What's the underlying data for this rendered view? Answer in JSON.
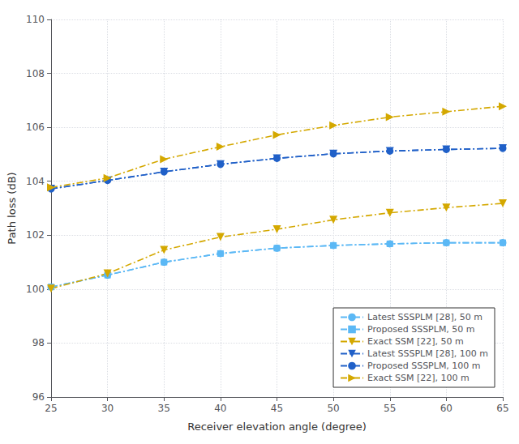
{
  "chart_data": {
    "type": "line",
    "xlabel": "Receiver elevation angle (degree)",
    "ylabel": "Path loss (dB)",
    "x": [
      25,
      30,
      35,
      40,
      45,
      50,
      55,
      60,
      65
    ],
    "series": [
      {
        "name": "Latest SSSPLM [28], 50 m",
        "color": "#5bb8f5",
        "marker": "circle",
        "line_style": "dashdot",
        "values": [
          100.08,
          100.52,
          101.0,
          101.32,
          101.52,
          101.62,
          101.68,
          101.72,
          101.72
        ]
      },
      {
        "name": "Proposed SSSPLM, 50 m",
        "color": "#5bb8f5",
        "marker": "square",
        "line_style": "dashdot",
        "values": [
          100.08,
          100.52,
          101.0,
          101.32,
          101.52,
          101.62,
          101.68,
          101.72,
          101.72
        ]
      },
      {
        "name": "Exact SSM [22], 50 m",
        "color": "#d4a800",
        "marker": "triangle_down",
        "line_style": "dashdot",
        "values": [
          100.02,
          100.58,
          101.45,
          101.93,
          102.22,
          102.57,
          102.83,
          103.02,
          103.18
        ]
      },
      {
        "name": "Latest SSSPLM [28], 100 m",
        "color": "#2060c8",
        "marker": "triangle_down",
        "line_style": "dashdot",
        "values": [
          103.72,
          104.03,
          104.35,
          104.63,
          104.85,
          105.02,
          105.12,
          105.18,
          105.22
        ]
      },
      {
        "name": "Proposed SSSPLM, 100 m",
        "color": "#2060c8",
        "marker": "circle",
        "line_style": "dashdot",
        "values": [
          103.72,
          104.03,
          104.35,
          104.63,
          104.85,
          105.02,
          105.12,
          105.18,
          105.22
        ]
      },
      {
        "name": "Exact SSM [22], 100 m",
        "color": "#d4a800",
        "marker": "triangle_right",
        "line_style": "dashdot",
        "values": [
          103.77,
          104.12,
          104.82,
          105.28,
          105.72,
          106.07,
          106.38,
          106.58,
          106.78
        ]
      }
    ],
    "xlim": [
      25,
      65
    ],
    "ylim": [
      96,
      110
    ],
    "xticks": [
      25,
      30,
      35,
      40,
      45,
      50,
      55,
      60,
      65
    ],
    "yticks": [
      96,
      98,
      100,
      102,
      104,
      106,
      108,
      110
    ],
    "grid": true,
    "legend": "lower right"
  }
}
